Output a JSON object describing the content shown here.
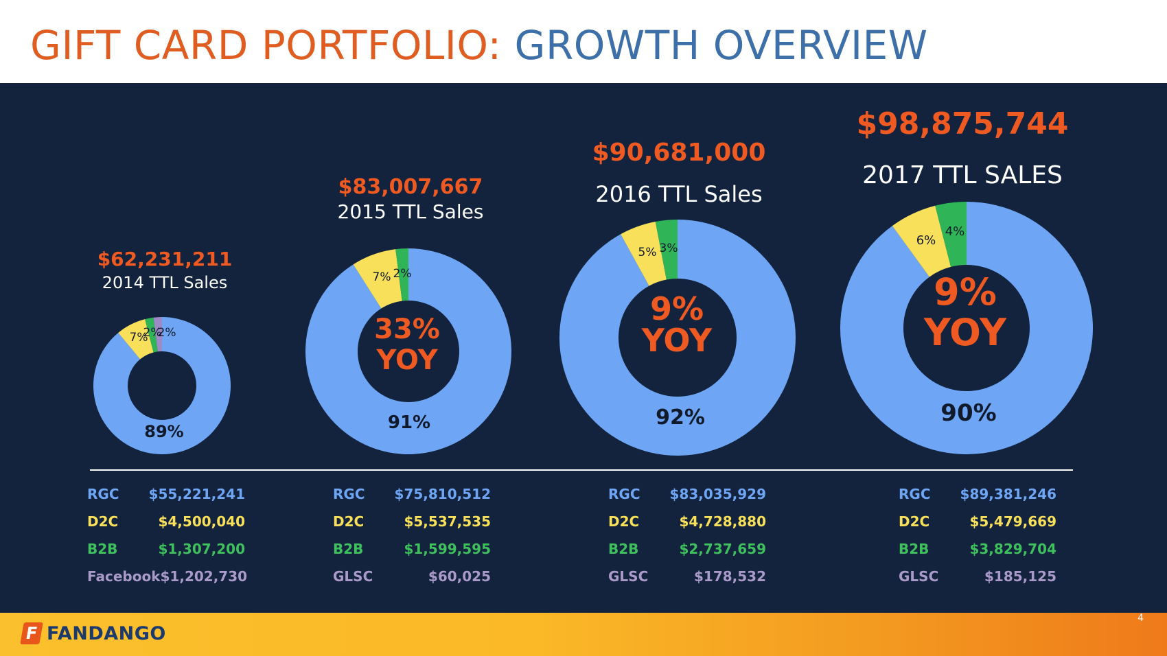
{
  "title": {
    "part1": "GIFT CARD PORTFOLIO:",
    "part2": "GROWTH OVERVIEW"
  },
  "page_number": "4",
  "footer": {
    "logo_text": "FANDANGO"
  },
  "colors": {
    "rgc": "#6ea6f5",
    "d2c": "#f9e05a",
    "b2b": "#2fb457",
    "other": "#9b8ac6",
    "accent_orange": "#ee5a22",
    "panel_bg": "#13233d"
  },
  "chart_data": {
    "type": "donut",
    "title": "Gift Card Portfolio: Growth Overview",
    "years": [
      {
        "year": "2014",
        "total": "$62,231,211",
        "total_label": "2014 TTL Sales",
        "yoy": "",
        "slices": [
          {
            "name": "RGC",
            "value": 89,
            "label": "89%"
          },
          {
            "name": "D2C",
            "value": 7,
            "label": "7%"
          },
          {
            "name": "B2B",
            "value": 2,
            "label": "2%"
          },
          {
            "name": "Facebook",
            "value": 2,
            "label": "2%"
          }
        ],
        "breakdown": [
          {
            "name": "RGC",
            "value": "$55,221,241"
          },
          {
            "name": "D2C",
            "value": "$4,500,040"
          },
          {
            "name": "B2B",
            "value": "$1,307,200"
          },
          {
            "name": "Facebook",
            "value": "$1,202,730"
          }
        ]
      },
      {
        "year": "2015",
        "total": "$83,007,667",
        "total_label": "2015 TTL Sales",
        "yoy": "33% YOY",
        "slices": [
          {
            "name": "RGC",
            "value": 91,
            "label": "91%"
          },
          {
            "name": "D2C",
            "value": 7,
            "label": "7%"
          },
          {
            "name": "B2B",
            "value": 2,
            "label": "2%"
          }
        ],
        "breakdown": [
          {
            "name": "RGC",
            "value": "$75,810,512"
          },
          {
            "name": "D2C",
            "value": "$5,537,535"
          },
          {
            "name": "B2B",
            "value": "$1,599,595"
          },
          {
            "name": "GLSC",
            "value": "$60,025"
          }
        ]
      },
      {
        "year": "2016",
        "total": "$90,681,000",
        "total_label": "2016 TTL Sales",
        "yoy": "9% YOY",
        "slices": [
          {
            "name": "RGC",
            "value": 92,
            "label": "92%"
          },
          {
            "name": "D2C",
            "value": 5,
            "label": "5%"
          },
          {
            "name": "B2B",
            "value": 3,
            "label": "3%"
          }
        ],
        "breakdown": [
          {
            "name": "RGC",
            "value": "$83,035,929"
          },
          {
            "name": "D2C",
            "value": "$4,728,880"
          },
          {
            "name": "B2B",
            "value": "$2,737,659"
          },
          {
            "name": "GLSC",
            "value": "$178,532"
          }
        ]
      },
      {
        "year": "2017",
        "total": "$98,875,744",
        "total_label": "2017 TTL SALES",
        "yoy": "9% YOY",
        "slices": [
          {
            "name": "RGC",
            "value": 90,
            "label": "90%"
          },
          {
            "name": "D2C",
            "value": 6,
            "label": "6%"
          },
          {
            "name": "B2B",
            "value": 4,
            "label": "4%"
          }
        ],
        "breakdown": [
          {
            "name": "RGC",
            "value": "$89,381,246"
          },
          {
            "name": "D2C",
            "value": "$5,479,669"
          },
          {
            "name": "B2B",
            "value": "$3,829,704"
          },
          {
            "name": "GLSC",
            "value": "$185,125"
          }
        ]
      }
    ]
  }
}
